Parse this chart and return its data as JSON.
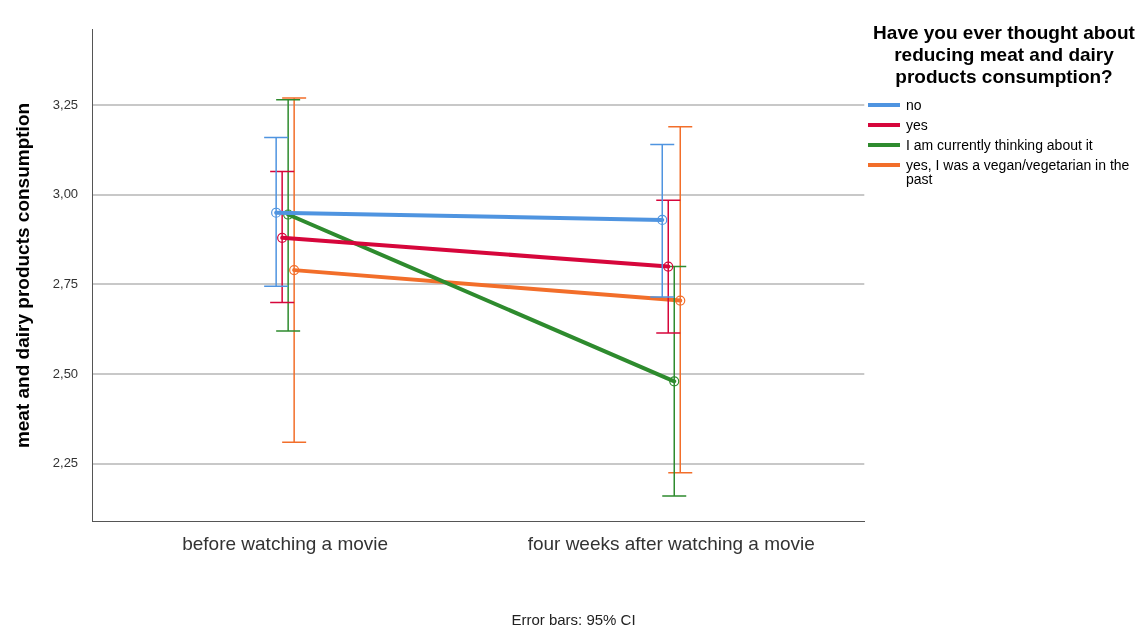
{
  "chart_data": {
    "type": "line",
    "ylabel": "meat and dairy products consumption",
    "legend_title": "Have you ever thought about reducing meat and dairy products consumption?",
    "categories": [
      "before watching a movie",
      "four weeks after watching a movie"
    ],
    "series": [
      {
        "name": "no",
        "color": "#4f94e0",
        "values": [
          2.95,
          2.93
        ],
        "errors": [
          [
            2.745,
            3.16
          ],
          [
            2.715,
            3.14
          ]
        ]
      },
      {
        "name": "yes",
        "color": "#d6063b",
        "values": [
          2.88,
          2.8
        ],
        "errors": [
          [
            2.7,
            3.065
          ],
          [
            2.615,
            2.985
          ]
        ]
      },
      {
        "name": "I am currently thinking about it",
        "color": "#2e8b2e",
        "values": [
          2.945,
          2.48
        ],
        "errors": [
          [
            2.62,
            3.265
          ],
          [
            2.16,
            2.8
          ]
        ]
      },
      {
        "name": "yes, I was a vegan/vegetarian in the past",
        "color": "#f26e2a",
        "values": [
          2.79,
          2.705
        ],
        "errors": [
          [
            2.31,
            3.27
          ],
          [
            2.225,
            3.19
          ]
        ]
      }
    ],
    "ylim": [
      2.09,
      3.46
    ],
    "yticks": [
      {
        "value": 2.25,
        "label": "2,25"
      },
      {
        "value": 2.5,
        "label": "2,50"
      },
      {
        "value": 2.75,
        "label": "2,75"
      },
      {
        "value": 3,
        "label": "3,00"
      },
      {
        "value": 3.25,
        "label": "3,25"
      }
    ],
    "grid": "y",
    "legend": "right",
    "marker": "circle",
    "line_style": "solid",
    "annotations": [
      "Error bars: 95% CI"
    ]
  }
}
